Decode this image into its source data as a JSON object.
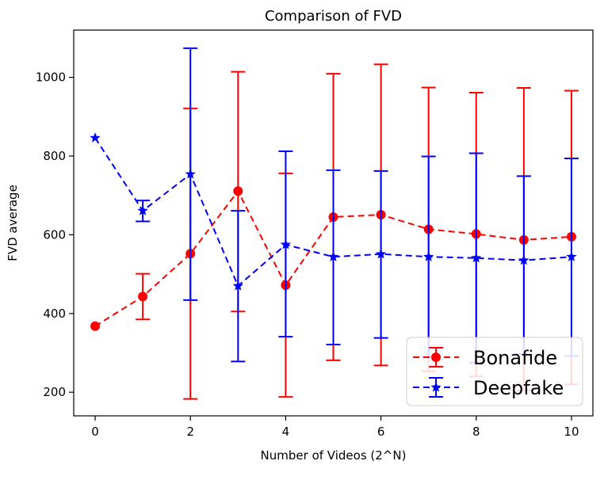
{
  "chart_data": {
    "type": "line",
    "title": "Comparison of FVD",
    "xlabel": "Number of Videos (2^N)",
    "ylabel": "FVD average",
    "xlim": [
      -0.45,
      10.45
    ],
    "ylim": [
      140,
      1120
    ],
    "x_ticks": [
      "0",
      "2",
      "4",
      "6",
      "8",
      "10"
    ],
    "y_ticks": [
      "200",
      "400",
      "600",
      "800",
      "1000"
    ],
    "grid": false,
    "legend_position": "lower right",
    "x": [
      0,
      1,
      2,
      3,
      4,
      5,
      6,
      7,
      8,
      9,
      10
    ],
    "series": [
      {
        "name": "Bonafide",
        "color": "#ff0000",
        "marker": "circle",
        "line_style": "dashed",
        "values": [
          368,
          443,
          552,
          711,
          472,
          645,
          651,
          614,
          602,
          587,
          595
        ],
        "error_low": [
          368,
          385,
          183,
          405,
          188,
          281,
          268,
          253,
          240,
          205,
          220
        ],
        "error_high": [
          368,
          501,
          921,
          1014,
          756,
          1009,
          1033,
          974,
          961,
          973,
          966
        ]
      },
      {
        "name": "Deepfake",
        "color": "#0000ff",
        "marker": "star",
        "line_style": "dashed",
        "values": [
          846,
          661,
          754,
          470,
          575,
          544,
          551,
          544,
          541,
          535,
          544
        ],
        "error_low": [
          846,
          634,
          434,
          278,
          341,
          321,
          338,
          290,
          275,
          297,
          292
        ],
        "error_high": [
          846,
          687,
          1074,
          661,
          812,
          764,
          762,
          799,
          807,
          749,
          794
        ]
      }
    ]
  }
}
